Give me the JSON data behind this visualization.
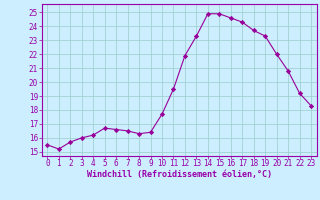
{
  "x": [
    0,
    1,
    2,
    3,
    4,
    5,
    6,
    7,
    8,
    9,
    10,
    11,
    12,
    13,
    14,
    15,
    16,
    17,
    18,
    19,
    20,
    21,
    22,
    23
  ],
  "y": [
    15.5,
    15.2,
    15.7,
    16.0,
    16.2,
    16.7,
    16.6,
    16.5,
    16.3,
    16.4,
    17.7,
    19.5,
    21.9,
    23.3,
    24.9,
    24.9,
    24.6,
    24.3,
    23.7,
    23.3,
    22.0,
    20.8,
    19.2,
    18.3
  ],
  "line_color": "#990099",
  "marker": "D",
  "markersize": 2.2,
  "linewidth": 0.8,
  "bg_color": "#cceeff",
  "grid_color": "#99cccc",
  "xlabel": "Windchill (Refroidissement éolien,°C)",
  "xlabel_fontsize": 6.0,
  "ylabel_ticks": [
    15,
    16,
    17,
    18,
    19,
    20,
    21,
    22,
    23,
    24,
    25
  ],
  "xlim": [
    -0.5,
    23.5
  ],
  "ylim": [
    14.7,
    25.6
  ],
  "tick_fontsize": 5.5,
  "spine_color": "#9900aa",
  "xlabel_color": "#9900aa",
  "xlabel_bold": true
}
